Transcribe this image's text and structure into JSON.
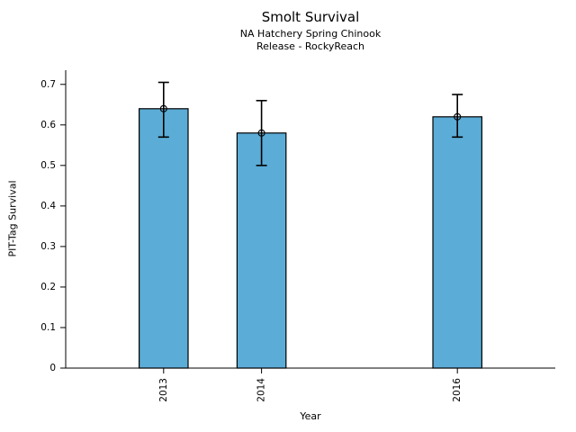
{
  "chart_data": {
    "type": "bar",
    "title": "Smolt Survival",
    "subtitles": [
      "NA Hatchery Spring Chinook",
      "Release - RockyReach"
    ],
    "xlabel": "Year",
    "ylabel": "PIT-Tag Survival",
    "categories": [
      2013,
      2014,
      2016
    ],
    "values": [
      0.64,
      0.58,
      0.62
    ],
    "error_low": [
      0.57,
      0.5,
      0.57
    ],
    "error_high": [
      0.705,
      0.66,
      0.675
    ],
    "xlim": [
      2012,
      2017
    ],
    "ylim": [
      0,
      0.735
    ],
    "yticks": [
      0,
      0.1,
      0.2,
      0.3,
      0.4,
      0.5,
      0.6,
      0.7
    ],
    "bar_width_years": 0.5,
    "x_tick_rotation": 90,
    "grid": false,
    "legend": null,
    "colors": {
      "bar_fill": "#5BACD6",
      "bar_edge": "#000000",
      "error_bar": "#000000",
      "marker_edge": "#000000",
      "axis": "#000000",
      "text": "#000000"
    },
    "marker": "open-circle"
  }
}
